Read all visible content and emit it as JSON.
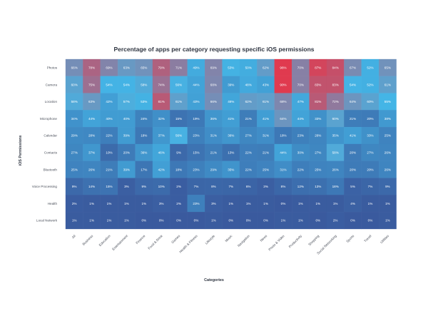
{
  "chart_data": {
    "type": "heatmap",
    "title": "Percentage of apps per category requesting specific iOS permissions",
    "xlabel": "Categories",
    "ylabel": "iOS Permissions",
    "value_unit": "%",
    "color_scale": {
      "low": "#3a5a9e",
      "mid": "#44b5e6",
      "high": "#e03a4f"
    },
    "columns": [
      "All",
      "Business",
      "Education",
      "Entertainment",
      "Finance",
      "Food & Drink",
      "Games",
      "Health & Fitness",
      "Lifestyle",
      "Music",
      "Navigation",
      "News",
      "Photo & Video",
      "Productivity",
      "Shopping",
      "Social Networking",
      "Sports",
      "Travel",
      "Utilities"
    ],
    "rows": [
      "Photos",
      "Camera",
      "Location",
      "Microphone",
      "Calendar",
      "Contacts",
      "Bluetooth",
      "Voice Processing",
      "Health",
      "Local Network"
    ],
    "values": [
      [
        66,
        78,
        69,
        63,
        65,
        79,
        71,
        49,
        69,
        53,
        50,
        62,
        96,
        70,
        87,
        84,
        67,
        52,
        65
      ],
      [
        60,
        75,
        54,
        54,
        58,
        74,
        56,
        44,
        68,
        39,
        48,
        43,
        90,
        70,
        83,
        83,
        54,
        52,
        61
      ],
      [
        58,
        63,
        42,
        57,
        53,
        81,
        61,
        43,
        66,
        46,
        62,
        61,
        68,
        47,
        81,
        72,
        64,
        60,
        55
      ],
      [
        34,
        44,
        40,
        40,
        24,
        32,
        15,
        19,
        36,
        41,
        21,
        41,
        64,
        44,
        33,
        60,
        21,
        20,
        38
      ],
      [
        29,
        28,
        22,
        39,
        18,
        37,
        56,
        23,
        31,
        36,
        27,
        31,
        18,
        23,
        26,
        35,
        41,
        33,
        25
      ],
      [
        27,
        37,
        10,
        20,
        36,
        46,
        9,
        15,
        21,
        13,
        22,
        21,
        44,
        30,
        27,
        58,
        20,
        27,
        26
      ],
      [
        25,
        26,
        21,
        39,
        17,
        42,
        18,
        23,
        29,
        35,
        22,
        25,
        31,
        22,
        25,
        26,
        20,
        20,
        26
      ],
      [
        9,
        14,
        15,
        3,
        9,
        10,
        2,
        7,
        8,
        7,
        6,
        3,
        8,
        12,
        13,
        18,
        5,
        7,
        9
      ],
      [
        2,
        1,
        1,
        1,
        1,
        3,
        2,
        23,
        3,
        1,
        1,
        1,
        0,
        1,
        1,
        1,
        4,
        1,
        1
      ],
      [
        1,
        1,
        1,
        1,
        0,
        0,
        0,
        0,
        1,
        0,
        0,
        0,
        1,
        1,
        0,
        2,
        0,
        0,
        1
      ]
    ],
    "legend": "none",
    "grid": false
  }
}
